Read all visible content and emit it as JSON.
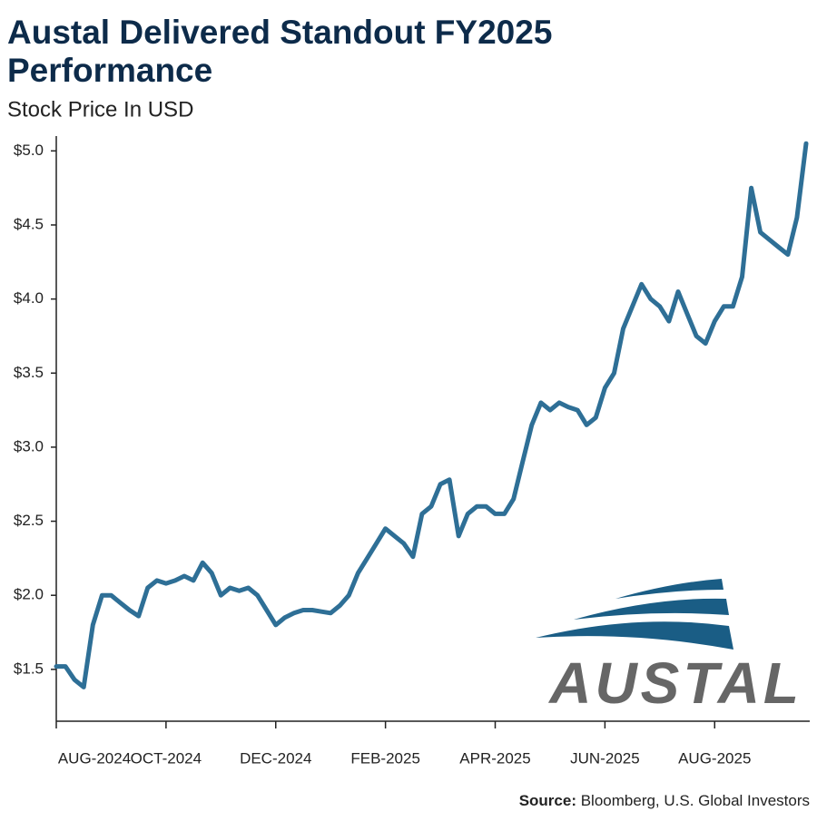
{
  "chart_data": {
    "type": "line",
    "title": "Austal Delivered Standout FY2025 Performance",
    "subtitle": "Stock Price In USD",
    "source_label": "Source:",
    "source": "Bloomberg, U.S. Global Investors",
    "logo": "AUSTAL",
    "categories": [
      "AUG-2024",
      null,
      null,
      null,
      null,
      null,
      null,
      null,
      null,
      null,
      null,
      null,
      "OCT-2024",
      null,
      null,
      null,
      null,
      null,
      null,
      null,
      null,
      null,
      null,
      null,
      "DEC-2024",
      null,
      null,
      null,
      null,
      null,
      null,
      null,
      null,
      null,
      null,
      null,
      "FEB-2025",
      null,
      null,
      null,
      null,
      null,
      null,
      null,
      null,
      null,
      null,
      null,
      "APR-2025",
      null,
      null,
      null,
      null,
      null,
      null,
      null,
      null,
      null,
      null,
      null,
      "JUN-2025",
      null,
      null,
      null,
      null,
      null,
      null,
      null,
      null,
      null,
      null,
      null,
      "AUG-2025",
      null,
      null,
      null,
      null,
      null,
      null,
      null,
      null,
      null,
      null
    ],
    "series": [
      {
        "name": "Austal",
        "color": "#2e6f96",
        "values": [
          1.52,
          1.52,
          1.43,
          1.38,
          1.8,
          2.0,
          2.0,
          1.95,
          1.9,
          1.86,
          2.05,
          2.1,
          2.08,
          2.1,
          2.13,
          2.1,
          2.22,
          2.15,
          2.0,
          2.05,
          2.03,
          2.05,
          2.0,
          1.9,
          1.8,
          1.85,
          1.88,
          1.9,
          1.9,
          1.89,
          1.88,
          1.93,
          2.0,
          2.15,
          2.25,
          2.35,
          2.45,
          2.4,
          2.35,
          2.26,
          2.55,
          2.6,
          2.75,
          2.78,
          2.4,
          2.55,
          2.6,
          2.6,
          2.55,
          2.55,
          2.65,
          2.9,
          3.15,
          3.3,
          3.25,
          3.3,
          3.27,
          3.25,
          3.15,
          3.2,
          3.4,
          3.5,
          3.8,
          3.95,
          4.1,
          4.0,
          3.95,
          3.85,
          4.05,
          3.9,
          3.75,
          3.7,
          3.85,
          3.95,
          3.95,
          4.15,
          4.75,
          4.45,
          4.4,
          4.35,
          4.3,
          4.55,
          5.05
        ]
      }
    ],
    "ylim": [
      1.15,
      5.1
    ],
    "yticks": [
      {
        "value": 1.5,
        "label": "$1.5"
      },
      {
        "value": 2.0,
        "label": "$2.0"
      },
      {
        "value": 2.5,
        "label": "$2.5"
      },
      {
        "value": 3.0,
        "label": "$3.0"
      },
      {
        "value": 3.5,
        "label": "$3.5"
      },
      {
        "value": 4.0,
        "label": "$4.0"
      },
      {
        "value": 4.5,
        "label": "$4.5"
      },
      {
        "value": 5.0,
        "label": "$5.0"
      }
    ],
    "grid": false
  }
}
